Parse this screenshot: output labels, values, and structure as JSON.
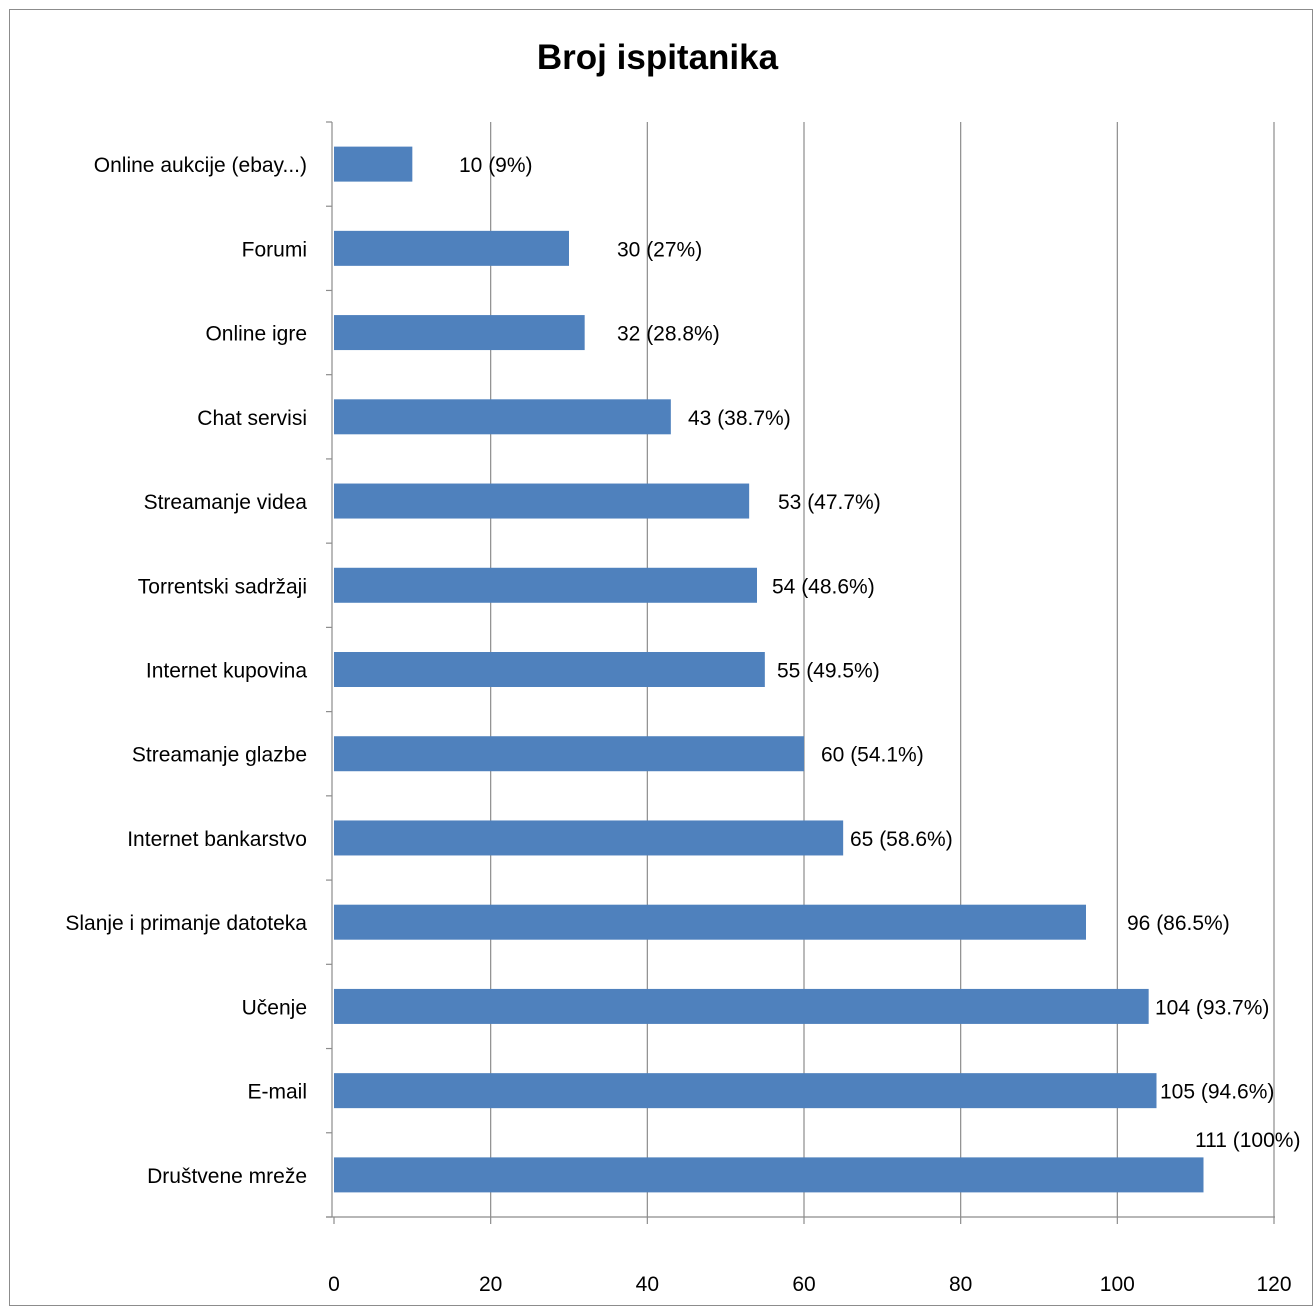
{
  "chart_data": {
    "type": "bar",
    "orientation": "horizontal",
    "title": "Broj ispitanika",
    "xlabel": "",
    "ylabel": "",
    "xlim": [
      0,
      120
    ],
    "x_ticks": [
      0,
      20,
      40,
      60,
      80,
      100,
      120
    ],
    "grid": "vertical major gridlines",
    "legend": "none",
    "bar_color": "#4f81bd",
    "categories": [
      "Online aukcije (ebay...)",
      "Forumi",
      "Online igre",
      "Chat servisi",
      "Streamanje videa",
      "Torrentski sadržaji",
      "Internet kupovina",
      "Streamanje glazbe",
      "Internet bankarstvo",
      "Slanje i primanje datoteka",
      "Učenje",
      "E-mail",
      "Društvene mreže"
    ],
    "values": [
      10,
      30,
      32,
      43,
      53,
      54,
      55,
      60,
      65,
      96,
      104,
      105,
      111
    ],
    "data_labels": [
      "10 (9%)",
      "30 (27%)",
      "32 (28.8%)",
      "43 (38.7%)",
      "53 (47.7%)",
      "54 (48.6%)",
      "55 (49.5%)",
      "60 (54.1%)",
      "65 (58.6%)",
      "96 (86.5%)",
      "104 (93.7%)",
      "105 (94.6%)",
      "111 (100%)"
    ]
  }
}
